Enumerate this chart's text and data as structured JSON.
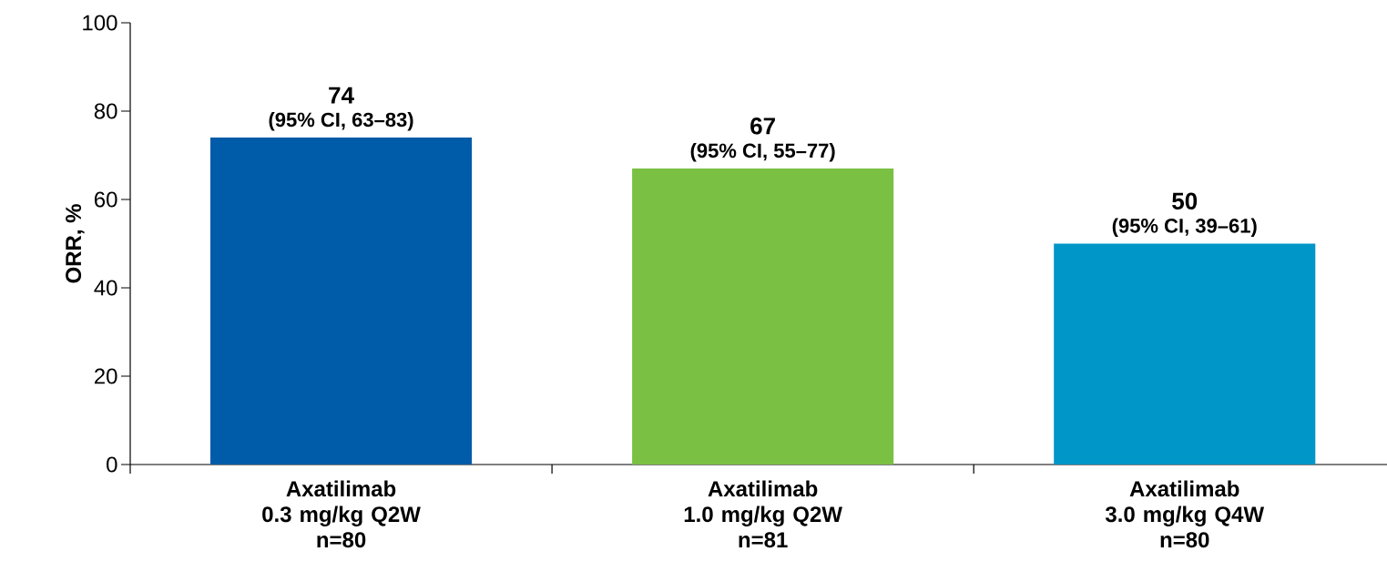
{
  "chart_data": {
    "type": "bar",
    "ylabel": "ORR, %",
    "categories": [
      "Axatilimab\n0.3 mg/kg Q2W\nn=80",
      "Axatilimab\n1.0 mg/kg Q2W\nn=81",
      "Axatilimab\n3.0 mg/kg Q4W\nn=80"
    ],
    "values": [
      74,
      67,
      50
    ],
    "colors": [
      "#005ba8",
      "#7ac143",
      "#0096c8"
    ],
    "ylim": [
      0,
      100
    ],
    "yticks": [
      0,
      20,
      40,
      60,
      80,
      100
    ],
    "grid": false,
    "data_labels": true,
    "annotations": [
      {
        "text": "(95% CI, 63–83)",
        "x": "Axatilimab\n0.3 mg/kg Q2W\nn=80",
        "y": 74
      },
      {
        "text": "(95% CI, 55–77)",
        "x": "Axatilimab\n1.0 mg/kg Q2W\nn=81",
        "y": 67
      },
      {
        "text": "(95% CI, 39–61)",
        "x": "Axatilimab\n3.0 mg/kg Q4W\nn=80",
        "y": 50
      }
    ]
  }
}
